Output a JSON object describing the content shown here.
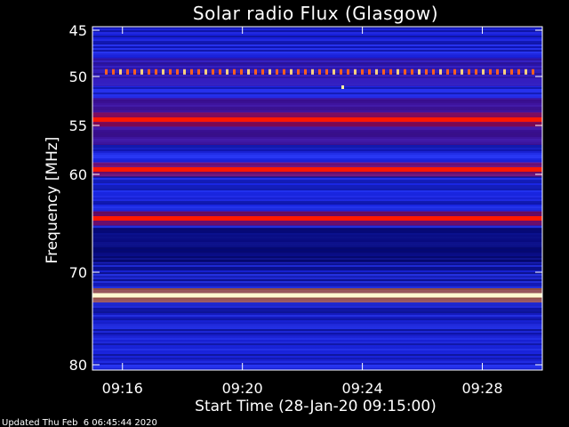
{
  "chart_data": {
    "type": "heatmap",
    "title": "Solar radio Flux (Glasgow)",
    "xlabel": "Start Time (28-Jan-20 09:15:00)",
    "ylabel": "Frequency [MHz]",
    "x_tick_labels": [
      "09:16",
      "09:20",
      "09:24",
      "09:28"
    ],
    "x_tick_minutes": [
      1,
      5,
      9,
      13
    ],
    "xlim_minutes": [
      0,
      15
    ],
    "y_ticks": [
      45,
      50,
      55,
      60,
      70,
      80
    ],
    "ylim": [
      45,
      80
    ],
    "y_axis_direction": "down",
    "colormap": [
      "#0000a0",
      "#1e2cf0",
      "#8a0030",
      "#ff2200",
      "#fff6c0"
    ],
    "background_level": "blue",
    "emission_bands_mhz": [
      {
        "freq": 49.5,
        "level": "red dashed"
      },
      {
        "freq": 54.4,
        "level": "red"
      },
      {
        "freq": 59.5,
        "level": "red"
      },
      {
        "freq": 64.5,
        "level": "red"
      },
      {
        "freq": 72.5,
        "level": "saturated (white-yellow)"
      }
    ]
  },
  "footer": {
    "updated": "Updated Thu Feb  6 06:45:44 2020"
  },
  "colors": {
    "background": "#000000",
    "text": "#ffffff"
  }
}
